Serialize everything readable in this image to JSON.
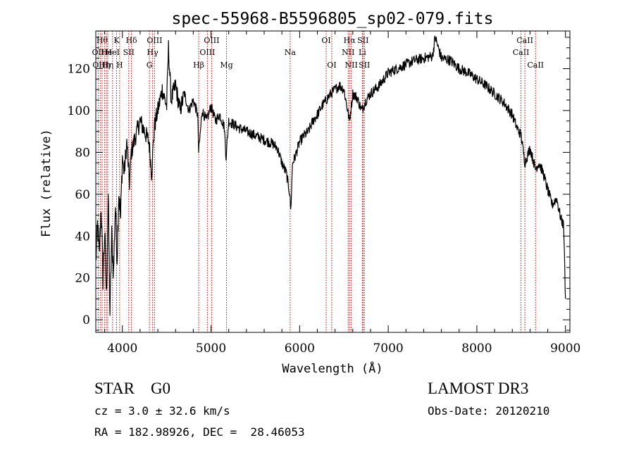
{
  "chart_data": {
    "type": "line",
    "title": "spec-55968-B5596805_sp02-079.fits",
    "xlabel": "Wavelength (Å)",
    "ylabel": "Flux (relative)",
    "xlim": [
      3700,
      9050
    ],
    "ylim": [
      -6,
      138
    ],
    "xticks": [
      4000,
      5000,
      6000,
      7000,
      8000,
      9000
    ],
    "yticks": [
      0,
      20,
      40,
      60,
      80,
      100,
      120
    ],
    "line_color": "#000000",
    "marker_color": "#cc0000",
    "series": [
      {
        "name": "flux",
        "points": [
          [
            3700,
            28
          ],
          [
            3720,
            45
          ],
          [
            3740,
            30
          ],
          [
            3760,
            55
          ],
          [
            3780,
            20
          ],
          [
            3800,
            42
          ],
          [
            3820,
            10
          ],
          [
            3840,
            60
          ],
          [
            3860,
            3
          ],
          [
            3880,
            40
          ],
          [
            3900,
            22
          ],
          [
            3920,
            55
          ],
          [
            3940,
            30
          ],
          [
            3960,
            62
          ],
          [
            3980,
            48
          ],
          [
            4000,
            78
          ],
          [
            4020,
            70
          ],
          [
            4050,
            85
          ],
          [
            4080,
            65
          ],
          [
            4100,
            80
          ],
          [
            4150,
            88
          ],
          [
            4200,
            95
          ],
          [
            4250,
            90
          ],
          [
            4300,
            85
          ],
          [
            4330,
            70
          ],
          [
            4360,
            92
          ],
          [
            4400,
            100
          ],
          [
            4450,
            110
          ],
          [
            4500,
            102
          ],
          [
            4520,
            130
          ],
          [
            4550,
            105
          ],
          [
            4600,
            112
          ],
          [
            4650,
            100
          ],
          [
            4700,
            108
          ],
          [
            4750,
            100
          ],
          [
            4800,
            105
          ],
          [
            4850,
            98
          ],
          [
            4861,
            80
          ],
          [
            4900,
            100
          ],
          [
            4950,
            95
          ],
          [
            5000,
            102
          ],
          [
            5050,
            95
          ],
          [
            5100,
            98
          ],
          [
            5150,
            92
          ],
          [
            5170,
            78
          ],
          [
            5200,
            95
          ],
          [
            5300,
            92
          ],
          [
            5400,
            90
          ],
          [
            5500,
            88
          ],
          [
            5600,
            86
          ],
          [
            5700,
            84
          ],
          [
            5750,
            82
          ],
          [
            5800,
            75
          ],
          [
            5850,
            70
          ],
          [
            5890,
            60
          ],
          [
            5900,
            52
          ],
          [
            5920,
            75
          ],
          [
            5950,
            78
          ],
          [
            6000,
            85
          ],
          [
            6050,
            88
          ],
          [
            6100,
            90
          ],
          [
            6150,
            95
          ],
          [
            6200,
            98
          ],
          [
            6250,
            102
          ],
          [
            6300,
            105
          ],
          [
            6350,
            108
          ],
          [
            6400,
            110
          ],
          [
            6450,
            112
          ],
          [
            6500,
            110
          ],
          [
            6563,
            95
          ],
          [
            6600,
            108
          ],
          [
            6650,
            106
          ],
          [
            6700,
            100
          ],
          [
            6750,
            105
          ],
          [
            6800,
            108
          ],
          [
            6900,
            112
          ],
          [
            7000,
            118
          ],
          [
            7100,
            120
          ],
          [
            7200,
            122
          ],
          [
            7300,
            124
          ],
          [
            7400,
            125
          ],
          [
            7500,
            126
          ],
          [
            7530,
            135
          ],
          [
            7600,
            125
          ],
          [
            7700,
            124
          ],
          [
            7800,
            120
          ],
          [
            7900,
            118
          ],
          [
            8000,
            115
          ],
          [
            8100,
            112
          ],
          [
            8200,
            108
          ],
          [
            8300,
            104
          ],
          [
            8400,
            98
          ],
          [
            8450,
            92
          ],
          [
            8500,
            88
          ],
          [
            8542,
            75
          ],
          [
            8600,
            82
          ],
          [
            8662,
            72
          ],
          [
            8700,
            75
          ],
          [
            8750,
            70
          ],
          [
            8800,
            62
          ],
          [
            8850,
            55
          ],
          [
            8900,
            58
          ],
          [
            8950,
            48
          ],
          [
            8980,
            45
          ],
          [
            9000,
            10
          ]
        ]
      }
    ],
    "line_markers": [
      {
        "wavelength": 3727,
        "label": "OII",
        "row": 2
      },
      {
        "wavelength": 3750,
        "label": "OIII",
        "row": 3
      },
      {
        "wavelength": 3771,
        "label": "Hθ",
        "row": 1
      },
      {
        "wavelength": 3798,
        "label": "Hη",
        "row": 3
      },
      {
        "wavelength": 3820,
        "label": "He",
        "row": 2
      },
      {
        "wavelength": 3835,
        "label": "Hη",
        "row": 3
      },
      {
        "wavelength": 3889,
        "label": "HeI",
        "row": 2
      },
      {
        "wavelength": 3934,
        "label": "K",
        "row": 1
      },
      {
        "wavelength": 3969,
        "label": "H",
        "row": 3
      },
      {
        "wavelength": 4072,
        "label": "SII",
        "row": 2
      },
      {
        "wavelength": 4102,
        "label": "Hδ",
        "row": 1
      },
      {
        "wavelength": 4305,
        "label": "G",
        "row": 3
      },
      {
        "wavelength": 4341,
        "label": "Hγ",
        "row": 2
      },
      {
        "wavelength": 4363,
        "label": "OIII",
        "row": 1
      },
      {
        "wavelength": 4861,
        "label": "Hβ",
        "row": 3
      },
      {
        "wavelength": 4959,
        "label": "OIII",
        "row": 2
      },
      {
        "wavelength": 5007,
        "label": "OIII",
        "row": 1
      },
      {
        "wavelength": 5175,
        "label": "Mg",
        "row": 3
      },
      {
        "wavelength": 5893,
        "label": "Na",
        "row": 2
      },
      {
        "wavelength": 6300,
        "label": "OI",
        "row": 1
      },
      {
        "wavelength": 6363,
        "label": "OI",
        "row": 3
      },
      {
        "wavelength": 6548,
        "label": "NII",
        "row": 2
      },
      {
        "wavelength": 6563,
        "label": "Hα",
        "row": 1
      },
      {
        "wavelength": 6583,
        "label": "NII",
        "row": 3
      },
      {
        "wavelength": 6708,
        "label": "Li",
        "row": 2
      },
      {
        "wavelength": 6716,
        "label": "SII",
        "row": 1
      },
      {
        "wavelength": 6731,
        "label": "SII",
        "row": 3
      },
      {
        "wavelength": 8498,
        "label": "CaII",
        "row": 2
      },
      {
        "wavelength": 8542,
        "label": "CaII",
        "row": 1
      },
      {
        "wavelength": 8662,
        "label": "CaII",
        "row": 3
      }
    ]
  },
  "info": {
    "class_label": "STAR    G0",
    "survey": "LAMOST DR3",
    "cz": "cz = 3.0 ± 32.6 km/s",
    "obs_date": "Obs-Date: 20120210",
    "ra_dec": "RA = 182.98926, DEC =  28.46053"
  }
}
